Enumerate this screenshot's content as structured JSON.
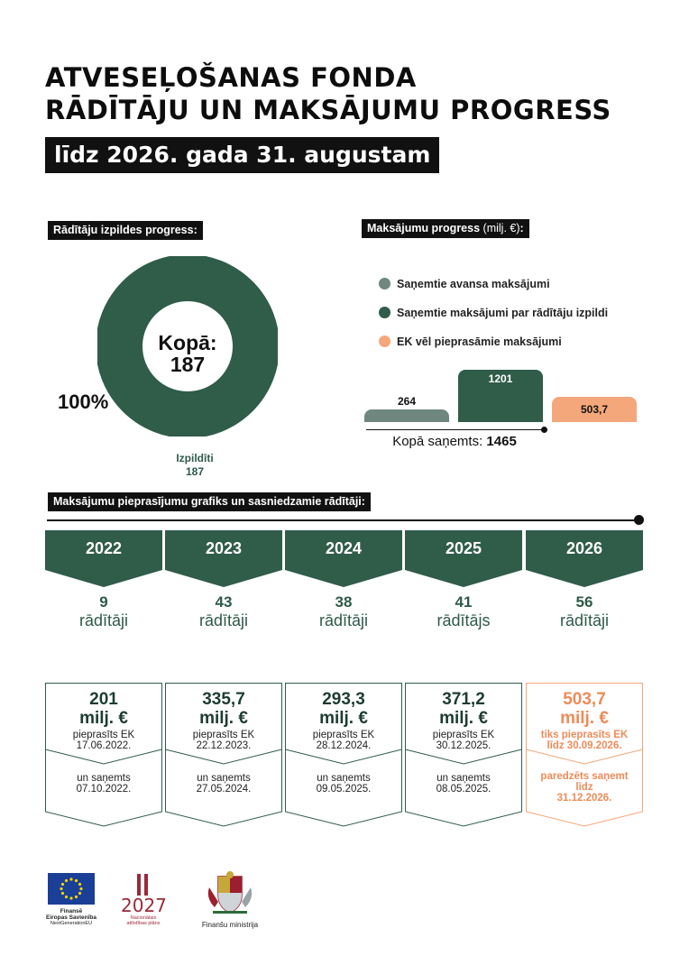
{
  "header": {
    "title_line1": "ATVESEĻOŠANAS FONDA",
    "title_line2": "RĀDĪTĀJU UN MAKSĀJUMU PROGRESS",
    "subtitle": "līdz 2026. gada 31. augustam"
  },
  "progress": {
    "label": "Rādītāju izpildes progress:",
    "center_label": "Kopā:",
    "center_value": "187",
    "percent_label": "100%",
    "segment_label": "Izpildīti",
    "segment_value": "187"
  },
  "payments": {
    "label": "Maksājumu progress",
    "unit": "(milj. €)",
    "colon": ":",
    "total_label": "Kopā saņemts:",
    "total_value": "1465"
  },
  "schedule": {
    "label": "Maksājumu pieprasījumu grafiks un sasniedzamie rādītāji:",
    "years": [
      {
        "year": "2022",
        "count": "9",
        "word": "rādītāji",
        "amount": "201",
        "unit": "milj. €",
        "req_label": "pieprasīts EK",
        "req_date": "17.06.2022.",
        "rec_label": "un saņemts",
        "rec_date": "07.10.2022.",
        "rec_date2": ""
      },
      {
        "year": "2023",
        "count": "43",
        "word": "rādītāji",
        "amount": "335,7",
        "unit": "milj. €",
        "req_label": "pieprasīts EK",
        "req_date": "22.12.2023.",
        "rec_label": "un saņemts",
        "rec_date": "27.05.2024.",
        "rec_date2": ""
      },
      {
        "year": "2024",
        "count": "38",
        "word": "rādītāji",
        "amount": "293,3",
        "unit": "milj. €",
        "req_label": "pieprasīts EK",
        "req_date": "28.12.2024.",
        "rec_label": "un saņemts",
        "rec_date": "09.05.2025.",
        "rec_date2": ""
      },
      {
        "year": "2025",
        "count": "41",
        "word": "rādītājs",
        "amount": "371,2",
        "unit": "milj. €",
        "req_label": "pieprasīts EK",
        "req_date": "30.12.2025.",
        "rec_label": "un saņemts",
        "rec_date": "08.05.2025.",
        "rec_date2": ""
      },
      {
        "year": "2026",
        "count": "56",
        "word": "rādītāji",
        "amount": "503,7",
        "unit": "milj. €",
        "req_label": "tiks pieprasīts EK",
        "req_date": "līdz 30.09.2026.",
        "rec_label": "paredzēts saņemt",
        "rec_date": "līdz",
        "rec_date2": "31.12.2026."
      }
    ]
  },
  "logos": {
    "eu_line1": "Finansē",
    "eu_line2": "Eiropas Savienība",
    "eu_line3": "NextGenerationEU",
    "nap_year": "2027",
    "nap_line1": "Nacionālais",
    "nap_line2": "attīstības plāns",
    "ministry": "Finanšu ministrija"
  },
  "colors": {
    "dark_green": "#305c4a",
    "grey_green": "#6f877e",
    "orange": "#f4a77a",
    "black": "#111111"
  },
  "chart_data": [
    {
      "type": "pie",
      "variant": "donut",
      "title": "Rādītāju izpildes progress:",
      "slices": [
        {
          "name": "Izpildīti",
          "value": 187,
          "percent": 100,
          "color": "#305c4a"
        }
      ],
      "total": 187
    },
    {
      "type": "bar",
      "title": "Maksājumu progress (milj. €):",
      "unit": "milj. €",
      "categories": [
        "Saņemtie avansa maksājumi",
        "Saņemtie maksājumi par rādītāju izpildi",
        "EK vēl pieprasāmie maksājumi"
      ],
      "values": [
        264,
        1201,
        503.7
      ],
      "value_labels": [
        "264",
        "1201",
        "503,7"
      ],
      "colors": [
        "#6f877e",
        "#305c4a",
        "#f4a77a"
      ],
      "legend": "top",
      "total_received": 1465
    }
  ]
}
